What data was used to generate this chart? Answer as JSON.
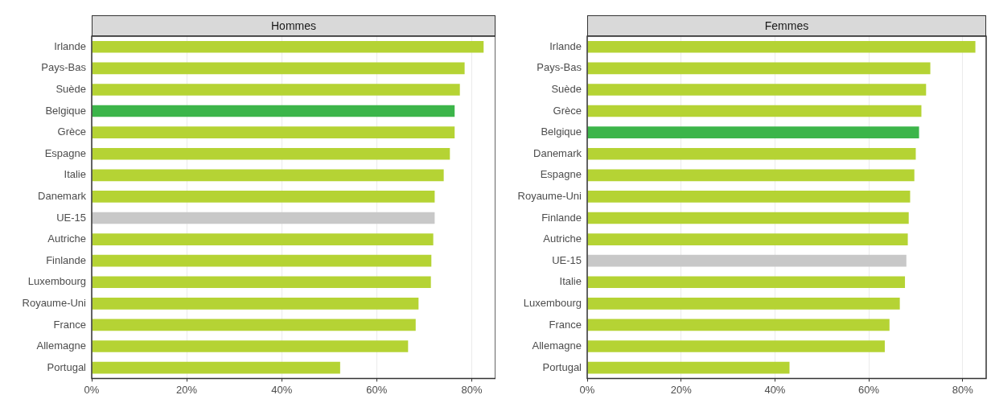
{
  "chart_data": [
    {
      "type": "bar",
      "title": "Hommes",
      "orientation": "horizontal",
      "grid": "x",
      "categories": [
        "Irlande",
        "Pays-Bas",
        "Suède",
        "Belgique",
        "Grèce",
        "Espagne",
        "Italie",
        "Danemark",
        "UE-15",
        "Autriche",
        "Finlande",
        "Luxembourg",
        "Royaume-Uni",
        "France",
        "Allemagne",
        "Portugal"
      ],
      "values": [
        82.5,
        78.5,
        77.5,
        76.4,
        76.4,
        75.4,
        74.1,
        72.2,
        72.2,
        71.9,
        71.5,
        71.4,
        68.8,
        68.2,
        66.6,
        52.3
      ],
      "colors": [
        "#b5d334",
        "#b5d334",
        "#b5d334",
        "#3cb54a",
        "#b5d334",
        "#b5d334",
        "#b5d334",
        "#b5d334",
        "#c8c8c8",
        "#b5d334",
        "#b5d334",
        "#b5d334",
        "#b5d334",
        "#b5d334",
        "#b5d334",
        "#b5d334"
      ],
      "xlim": [
        0,
        85
      ],
      "xticks": [
        {
          "value": 0,
          "label": "0%"
        },
        {
          "value": 20,
          "label": "20%"
        },
        {
          "value": 40,
          "label": "40%"
        },
        {
          "value": 60,
          "label": "60%"
        },
        {
          "value": 80,
          "label": "80%"
        }
      ]
    },
    {
      "type": "bar",
      "title": "Femmes",
      "orientation": "horizontal",
      "grid": "x",
      "categories": [
        "Irlande",
        "Pays-Bas",
        "Suède",
        "Grèce",
        "Belgique",
        "Danemark",
        "Espagne",
        "Royaume-Uni",
        "Finlande",
        "Autriche",
        "UE-15",
        "Italie",
        "Luxembourg",
        "France",
        "Allemagne",
        "Portugal"
      ],
      "values": [
        82.7,
        73.1,
        72.2,
        71.2,
        70.7,
        70.0,
        69.7,
        68.8,
        68.5,
        68.3,
        68.0,
        67.7,
        66.6,
        64.4,
        63.4,
        43.1
      ],
      "colors": [
        "#b5d334",
        "#b5d334",
        "#b5d334",
        "#b5d334",
        "#3cb54a",
        "#b5d334",
        "#b5d334",
        "#b5d334",
        "#b5d334",
        "#b5d334",
        "#c8c8c8",
        "#b5d334",
        "#b5d334",
        "#b5d334",
        "#b5d334",
        "#b5d334"
      ],
      "xlim": [
        0,
        85
      ],
      "xticks": [
        {
          "value": 0,
          "label": "0%"
        },
        {
          "value": 20,
          "label": "20%"
        },
        {
          "value": 40,
          "label": "40%"
        },
        {
          "value": 60,
          "label": "60%"
        },
        {
          "value": 80,
          "label": "80%"
        }
      ]
    }
  ]
}
